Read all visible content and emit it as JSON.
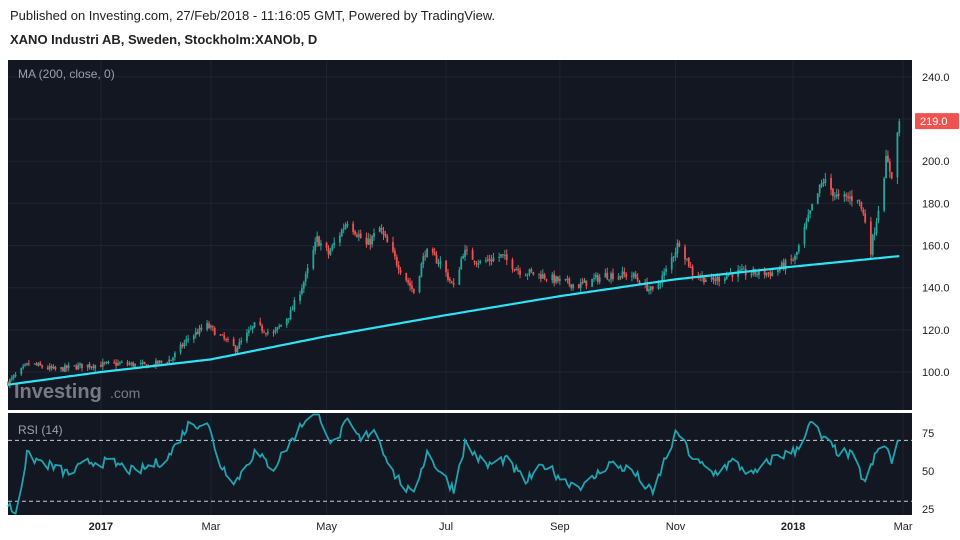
{
  "header": {
    "published": "Published on Investing.com, 27/Feb/2018 - 11:16:05 GMT, Powered by TradingView.",
    "instrument": "XANO Industri AB, Sweden, Stockholm:XANOb, D"
  },
  "watermark": {
    "brand": "Investing",
    "suffix": ".com"
  },
  "colors": {
    "background": "#131722",
    "up": "#26a69a",
    "down": "#ef5350",
    "ma": "#2fe3f5",
    "rsi": "#1fa3b0",
    "last_price_bg": "#ef5350"
  },
  "chart_data": [
    {
      "type": "candlestick",
      "indicator_label": "MA (200, close, 0)",
      "ylim": [
        82,
        248
      ],
      "y_ticks": [
        100,
        120,
        140,
        160,
        180,
        200,
        220,
        240
      ],
      "y_tick_labels": [
        "100.0",
        "120.0",
        "140.0",
        "160.0",
        "180.0",
        "200.0",
        "220.0",
        "240.0"
      ],
      "last_price_label": "219.0",
      "last_price": 219,
      "x_tick_labels": [
        {
          "label": "2017",
          "bold": true,
          "at": "2017-01-02"
        },
        {
          "label": "Mar",
          "bold": false,
          "at": "2017-03-01"
        },
        {
          "label": "May",
          "bold": false,
          "at": "2017-05-01"
        },
        {
          "label": "Jul",
          "bold": false,
          "at": "2017-07-03"
        },
        {
          "label": "Sep",
          "bold": false,
          "at": "2017-09-01"
        },
        {
          "label": "Nov",
          "bold": false,
          "at": "2017-11-01"
        },
        {
          "label": "2018",
          "bold": true,
          "at": "2018-01-02"
        },
        {
          "label": "Mar",
          "bold": false,
          "at": "2018-03-01"
        }
      ],
      "x_range": [
        "2016-11-14",
        "2018-03-02"
      ],
      "price_anchors": [
        [
          "2016-11-14",
          95
        ],
        [
          "2016-11-25",
          104
        ],
        [
          "2016-12-09",
          101
        ],
        [
          "2016-12-23",
          103
        ],
        [
          "2017-01-13",
          104
        ],
        [
          "2017-01-27",
          103
        ],
        [
          "2017-02-08",
          106
        ],
        [
          "2017-02-17",
          116
        ],
        [
          "2017-02-27",
          122
        ],
        [
          "2017-03-06",
          117
        ],
        [
          "2017-03-14",
          111
        ],
        [
          "2017-03-24",
          122
        ],
        [
          "2017-04-03",
          118
        ],
        [
          "2017-04-12",
          128
        ],
        [
          "2017-04-20",
          145
        ],
        [
          "2017-04-26",
          163
        ],
        [
          "2017-05-02",
          156
        ],
        [
          "2017-05-12",
          172
        ],
        [
          "2017-05-22",
          160
        ],
        [
          "2017-05-29",
          168
        ],
        [
          "2017-06-07",
          152
        ],
        [
          "2017-06-16",
          138
        ],
        [
          "2017-06-22",
          157
        ],
        [
          "2017-06-30",
          152
        ],
        [
          "2017-07-07",
          140
        ],
        [
          "2017-07-12",
          157
        ],
        [
          "2017-07-21",
          152
        ],
        [
          "2017-08-01",
          155
        ],
        [
          "2017-08-11",
          148
        ],
        [
          "2017-08-22",
          146
        ],
        [
          "2017-09-01",
          143
        ],
        [
          "2017-09-11",
          141
        ],
        [
          "2017-09-25",
          146
        ],
        [
          "2017-10-09",
          146
        ],
        [
          "2017-10-20",
          138
        ],
        [
          "2017-10-27",
          148
        ],
        [
          "2017-11-03",
          162
        ],
        [
          "2017-11-10",
          147
        ],
        [
          "2017-11-20",
          143
        ],
        [
          "2017-11-30",
          147
        ],
        [
          "2017-12-11",
          147
        ],
        [
          "2017-12-22",
          147
        ],
        [
          "2018-01-03",
          154
        ],
        [
          "2018-01-12",
          178
        ],
        [
          "2018-01-18",
          191
        ],
        [
          "2018-01-26",
          182
        ],
        [
          "2018-02-05",
          183
        ],
        [
          "2018-02-09",
          172
        ],
        [
          "2018-02-12",
          158
        ],
        [
          "2018-02-16",
          178
        ],
        [
          "2018-02-20",
          200
        ],
        [
          "2018-02-23",
          194
        ],
        [
          "2018-02-27",
          219
        ]
      ],
      "ma_anchors": [
        [
          "2016-11-14",
          94
        ],
        [
          "2017-01-02",
          100
        ],
        [
          "2017-03-01",
          106
        ],
        [
          "2017-05-01",
          117
        ],
        [
          "2017-07-03",
          127
        ],
        [
          "2017-09-01",
          136
        ],
        [
          "2017-11-01",
          144
        ],
        [
          "2018-01-02",
          150
        ],
        [
          "2018-02-27",
          155
        ]
      ]
    },
    {
      "type": "line",
      "indicator_label": "RSI (14)",
      "ylim": [
        21,
        88
      ],
      "y_ticks": [
        25,
        50,
        75
      ],
      "y_tick_labels": [
        "25",
        "50",
        "75"
      ],
      "reference_lines": [
        30,
        70
      ],
      "rsi_anchors": [
        [
          "2016-11-14",
          28
        ],
        [
          "2016-11-18",
          22
        ],
        [
          "2016-11-24",
          60
        ],
        [
          "2016-12-05",
          54
        ],
        [
          "2016-12-16",
          48
        ],
        [
          "2016-12-27",
          56
        ],
        [
          "2017-01-09",
          55
        ],
        [
          "2017-01-20",
          49
        ],
        [
          "2017-02-06",
          58
        ],
        [
          "2017-02-17",
          80
        ],
        [
          "2017-02-27",
          82
        ],
        [
          "2017-03-06",
          54
        ],
        [
          "2017-03-14",
          43
        ],
        [
          "2017-03-24",
          62
        ],
        [
          "2017-04-03",
          52
        ],
        [
          "2017-04-13",
          71
        ],
        [
          "2017-04-21",
          86
        ],
        [
          "2017-04-27",
          88
        ],
        [
          "2017-05-04",
          67
        ],
        [
          "2017-05-12",
          82
        ],
        [
          "2017-05-19",
          70
        ],
        [
          "2017-05-26",
          78
        ],
        [
          "2017-06-05",
          49
        ],
        [
          "2017-06-15",
          34
        ],
        [
          "2017-06-23",
          62
        ],
        [
          "2017-06-30",
          49
        ],
        [
          "2017-07-07",
          38
        ],
        [
          "2017-07-13",
          68
        ],
        [
          "2017-07-24",
          53
        ],
        [
          "2017-08-03",
          58
        ],
        [
          "2017-08-14",
          43
        ],
        [
          "2017-08-24",
          54
        ],
        [
          "2017-09-04",
          43
        ],
        [
          "2017-09-14",
          40
        ],
        [
          "2017-09-27",
          55
        ],
        [
          "2017-10-09",
          50
        ],
        [
          "2017-10-20",
          35
        ],
        [
          "2017-10-26",
          56
        ],
        [
          "2017-11-02",
          76
        ],
        [
          "2017-11-10",
          58
        ],
        [
          "2017-11-21",
          48
        ],
        [
          "2017-12-01",
          56
        ],
        [
          "2017-12-12",
          47
        ],
        [
          "2017-12-22",
          58
        ],
        [
          "2018-01-03",
          63
        ],
        [
          "2018-01-12",
          82
        ],
        [
          "2018-01-17",
          72
        ],
        [
          "2018-01-25",
          63
        ],
        [
          "2018-02-02",
          60
        ],
        [
          "2018-02-09",
          42
        ],
        [
          "2018-02-15",
          62
        ],
        [
          "2018-02-20",
          67
        ],
        [
          "2018-02-23",
          55
        ],
        [
          "2018-02-27",
          70
        ]
      ]
    }
  ]
}
